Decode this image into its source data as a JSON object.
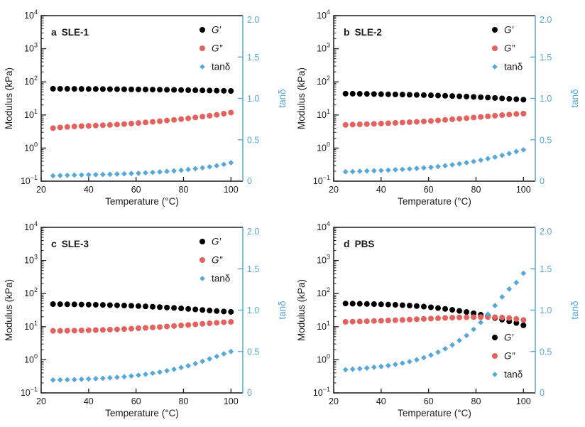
{
  "figure": {
    "background": "#ffffff"
  },
  "colors": {
    "axis": "#1a1a1a",
    "g_prime": "#000000",
    "g_double_prime": "#e4615e",
    "tan_delta": "#55a8db"
  },
  "chart_data": [
    {
      "type": "scatter",
      "panel_letter": "a",
      "sample": "SLE-1",
      "xlabel": "Temperature (°C)",
      "ylabel_left": "Modulus (kPa)",
      "ylabel_right": "tanδ",
      "x_range": [
        20,
        105
      ],
      "x_ticks": [
        20,
        40,
        60,
        80,
        100
      ],
      "y_left_scale": "log",
      "y_left_exponent_range": [
        -1,
        4
      ],
      "y_left_tick_base": "10",
      "y_left_tick_exponents": [
        4,
        3,
        2,
        1,
        0,
        -1
      ],
      "y_right_range": [
        0,
        2
      ],
      "y_right_ticks": [
        {
          "v": 2.0,
          "label": "2.0"
        },
        {
          "v": 1.5,
          "label": "1.5"
        },
        {
          "v": 1.0,
          "label": "1.0"
        },
        {
          "v": 0.5,
          "label": "0.5"
        },
        {
          "v": 0.0,
          "label": "0"
        }
      ],
      "legend_position": "upper-right",
      "x": [
        25,
        28,
        31,
        34,
        37,
        40,
        43,
        46,
        49,
        52,
        55,
        58,
        61,
        64,
        67,
        70,
        73,
        76,
        79,
        82,
        85,
        88,
        91,
        94,
        97,
        100
      ],
      "series": [
        {
          "name": "G′",
          "axis": "left",
          "marker": "circle",
          "color": "#000000",
          "values": [
            62,
            61.8,
            61.6,
            61.4,
            61.2,
            61,
            60.8,
            60.5,
            60.2,
            60,
            59.7,
            59.4,
            59.1,
            58.8,
            58.4,
            58,
            57.6,
            57.2,
            56.7,
            56.2,
            55.7,
            55.2,
            54.7,
            54.1,
            53.5,
            53
          ]
        },
        {
          "name": "G″",
          "axis": "left",
          "marker": "circle",
          "color": "#e4615e",
          "values": [
            4.0,
            4.2,
            4.35,
            4.5,
            4.6,
            4.7,
            4.8,
            4.9,
            5.0,
            5.15,
            5.3,
            5.5,
            5.7,
            5.95,
            6.2,
            6.5,
            6.8,
            7.1,
            7.5,
            7.9,
            8.4,
            8.9,
            9.5,
            10.1,
            10.9,
            11.8
          ]
        },
        {
          "name": "tanδ",
          "axis": "right",
          "marker": "diamond",
          "color": "#55a8db",
          "values": [
            0.065,
            0.068,
            0.071,
            0.073,
            0.075,
            0.077,
            0.079,
            0.081,
            0.083,
            0.086,
            0.089,
            0.093,
            0.096,
            0.101,
            0.106,
            0.112,
            0.118,
            0.124,
            0.132,
            0.141,
            0.151,
            0.161,
            0.174,
            0.187,
            0.204,
            0.223
          ]
        }
      ]
    },
    {
      "type": "scatter",
      "panel_letter": "b",
      "sample": "SLE-2",
      "xlabel": "Temperature (°C)",
      "ylabel_left": "Modulus (kPa)",
      "ylabel_right": "tanδ",
      "x_range": [
        20,
        105
      ],
      "x_ticks": [
        20,
        40,
        60,
        80,
        100
      ],
      "y_left_scale": "log",
      "y_left_exponent_range": [
        -1,
        4
      ],
      "y_left_tick_base": "10",
      "y_left_tick_exponents": [
        4,
        3,
        2,
        1,
        0,
        -1
      ],
      "y_right_range": [
        0,
        2
      ],
      "y_right_ticks": [
        {
          "v": 2.0,
          "label": "2.0"
        },
        {
          "v": 1.5,
          "label": "1.5"
        },
        {
          "v": 1.0,
          "label": "1.0"
        },
        {
          "v": 0.5,
          "label": "0.5"
        },
        {
          "v": 0.0,
          "label": "0"
        }
      ],
      "legend_position": "upper-right",
      "x": [
        25,
        28,
        31,
        34,
        37,
        40,
        43,
        46,
        49,
        52,
        55,
        58,
        61,
        64,
        67,
        70,
        73,
        76,
        79,
        82,
        85,
        88,
        91,
        94,
        97,
        100
      ],
      "series": [
        {
          "name": "G′",
          "axis": "left",
          "marker": "circle",
          "color": "#000000",
          "values": [
            44,
            43.8,
            43.5,
            43.2,
            42.9,
            42.5,
            42.1,
            41.7,
            41.3,
            40.8,
            40.3,
            39.8,
            39.2,
            38.6,
            38,
            37.3,
            36.6,
            35.9,
            35.1,
            34.3,
            33.5,
            32.6,
            31.7,
            30.8,
            29.9,
            29
          ]
        },
        {
          "name": "G″",
          "axis": "left",
          "marker": "circle",
          "color": "#e4615e",
          "values": [
            5.0,
            5.1,
            5.2,
            5.3,
            5.4,
            5.5,
            5.62,
            5.75,
            5.9,
            6.05,
            6.2,
            6.4,
            6.6,
            6.85,
            7.1,
            7.4,
            7.7,
            8.0,
            8.35,
            8.7,
            9.1,
            9.5,
            9.9,
            10.3,
            10.7,
            11.0
          ]
        },
        {
          "name": "tanδ",
          "axis": "right",
          "marker": "diamond",
          "color": "#55a8db",
          "values": [
            0.114,
            0.116,
            0.12,
            0.123,
            0.126,
            0.129,
            0.133,
            0.138,
            0.143,
            0.148,
            0.154,
            0.161,
            0.168,
            0.177,
            0.187,
            0.198,
            0.21,
            0.223,
            0.238,
            0.254,
            0.272,
            0.291,
            0.312,
            0.334,
            0.358,
            0.379
          ]
        }
      ]
    },
    {
      "type": "scatter",
      "panel_letter": "c",
      "sample": "SLE-3",
      "xlabel": "Temperature (°C)",
      "ylabel_left": "Modulus (kPa)",
      "ylabel_right": "tanδ",
      "x_range": [
        20,
        105
      ],
      "x_ticks": [
        20,
        40,
        60,
        80,
        100
      ],
      "y_left_scale": "log",
      "y_left_exponent_range": [
        -1,
        4
      ],
      "y_left_tick_base": "10",
      "y_left_tick_exponents": [
        4,
        3,
        2,
        1,
        0,
        -1
      ],
      "y_right_range": [
        0,
        2
      ],
      "y_right_ticks": [
        {
          "v": 2.0,
          "label": "2.0"
        },
        {
          "v": 1.5,
          "label": "1.5"
        },
        {
          "v": 1.0,
          "label": "1.0"
        },
        {
          "v": 0.5,
          "label": "0.5"
        },
        {
          "v": 0.0,
          "label": "0"
        }
      ],
      "legend_position": "upper-right",
      "x": [
        25,
        28,
        31,
        34,
        37,
        40,
        43,
        46,
        49,
        52,
        55,
        58,
        61,
        64,
        67,
        70,
        73,
        76,
        79,
        82,
        85,
        88,
        91,
        94,
        97,
        100
      ],
      "series": [
        {
          "name": "G′",
          "axis": "left",
          "marker": "circle",
          "color": "#000000",
          "values": [
            48,
            47.8,
            47.5,
            47.2,
            46.8,
            46.4,
            45.9,
            45.4,
            44.8,
            44.2,
            43.5,
            42.7,
            41.9,
            41,
            40,
            39,
            37.9,
            36.8,
            35.6,
            34.4,
            33.2,
            32,
            30.8,
            29.7,
            28.8,
            28
          ]
        },
        {
          "name": "G″",
          "axis": "left",
          "marker": "circle",
          "color": "#e4615e",
          "values": [
            7.5,
            7.5,
            7.55,
            7.6,
            7.7,
            7.8,
            7.9,
            8.0,
            8.15,
            8.3,
            8.5,
            8.7,
            8.95,
            9.2,
            9.5,
            9.8,
            10.15,
            10.5,
            10.9,
            11.3,
            11.75,
            12.2,
            12.65,
            13.1,
            13.6,
            14.0
          ]
        },
        {
          "name": "tanδ",
          "axis": "right",
          "marker": "diamond",
          "color": "#55a8db",
          "values": [
            0.156,
            0.157,
            0.159,
            0.161,
            0.165,
            0.168,
            0.172,
            0.176,
            0.182,
            0.188,
            0.195,
            0.204,
            0.214,
            0.224,
            0.238,
            0.251,
            0.268,
            0.285,
            0.306,
            0.328,
            0.354,
            0.381,
            0.411,
            0.441,
            0.472,
            0.5
          ]
        }
      ]
    },
    {
      "type": "scatter",
      "panel_letter": "d",
      "sample": "PBS",
      "xlabel": "Temperature (°C)",
      "ylabel_left": "Modulus (kPa)",
      "ylabel_right": "tanδ",
      "x_range": [
        20,
        105
      ],
      "x_ticks": [
        20,
        40,
        60,
        80,
        100
      ],
      "y_left_scale": "log",
      "y_left_exponent_range": [
        -1,
        4
      ],
      "y_left_tick_base": "10",
      "y_left_tick_exponents": [
        4,
        3,
        2,
        1,
        0,
        -1
      ],
      "y_right_range": [
        0,
        2
      ],
      "y_right_ticks": [
        {
          "v": 2.0,
          "label": "2.0"
        },
        {
          "v": 1.5,
          "label": "1.5"
        },
        {
          "v": 1.0,
          "label": "1.0"
        },
        {
          "v": 0.5,
          "label": "0.5"
        },
        {
          "v": 0.0,
          "label": "0"
        }
      ],
      "legend_position": "lower-right",
      "x": [
        25,
        28,
        31,
        34,
        37,
        40,
        43,
        46,
        49,
        52,
        55,
        58,
        61,
        64,
        67,
        70,
        73,
        76,
        79,
        82,
        85,
        88,
        91,
        94,
        97,
        100
      ],
      "series": [
        {
          "name": "G′",
          "axis": "left",
          "marker": "circle",
          "color": "#000000",
          "values": [
            50,
            49.6,
            49.2,
            48.7,
            48.1,
            47.4,
            46.6,
            45.7,
            44.6,
            43.4,
            42,
            40.4,
            38.6,
            36.6,
            34.5,
            32.3,
            30,
            27.7,
            25.3,
            22.9,
            20.5,
            18.3,
            16.3,
            14.5,
            12.9,
            11.0
          ]
        },
        {
          "name": "G″",
          "axis": "left",
          "marker": "circle",
          "color": "#e4615e",
          "values": [
            14,
            14.2,
            14.4,
            14.6,
            14.9,
            15.1,
            15.4,
            15.7,
            16.0,
            16.4,
            16.8,
            17.2,
            17.6,
            18.0,
            18.4,
            18.7,
            19.0,
            19.2,
            19.4,
            19.5,
            19.5,
            19.3,
            18.9,
            18.2,
            17.2,
            15.9
          ]
        },
        {
          "name": "tanδ",
          "axis": "right",
          "marker": "diamond",
          "color": "#55a8db",
          "values": [
            0.28,
            0.286,
            0.293,
            0.3,
            0.31,
            0.319,
            0.33,
            0.344,
            0.359,
            0.378,
            0.4,
            0.426,
            0.456,
            0.492,
            0.533,
            0.579,
            0.633,
            0.693,
            0.767,
            0.851,
            0.951,
            1.055,
            1.16,
            1.255,
            1.333,
            1.445
          ]
        }
      ]
    }
  ]
}
